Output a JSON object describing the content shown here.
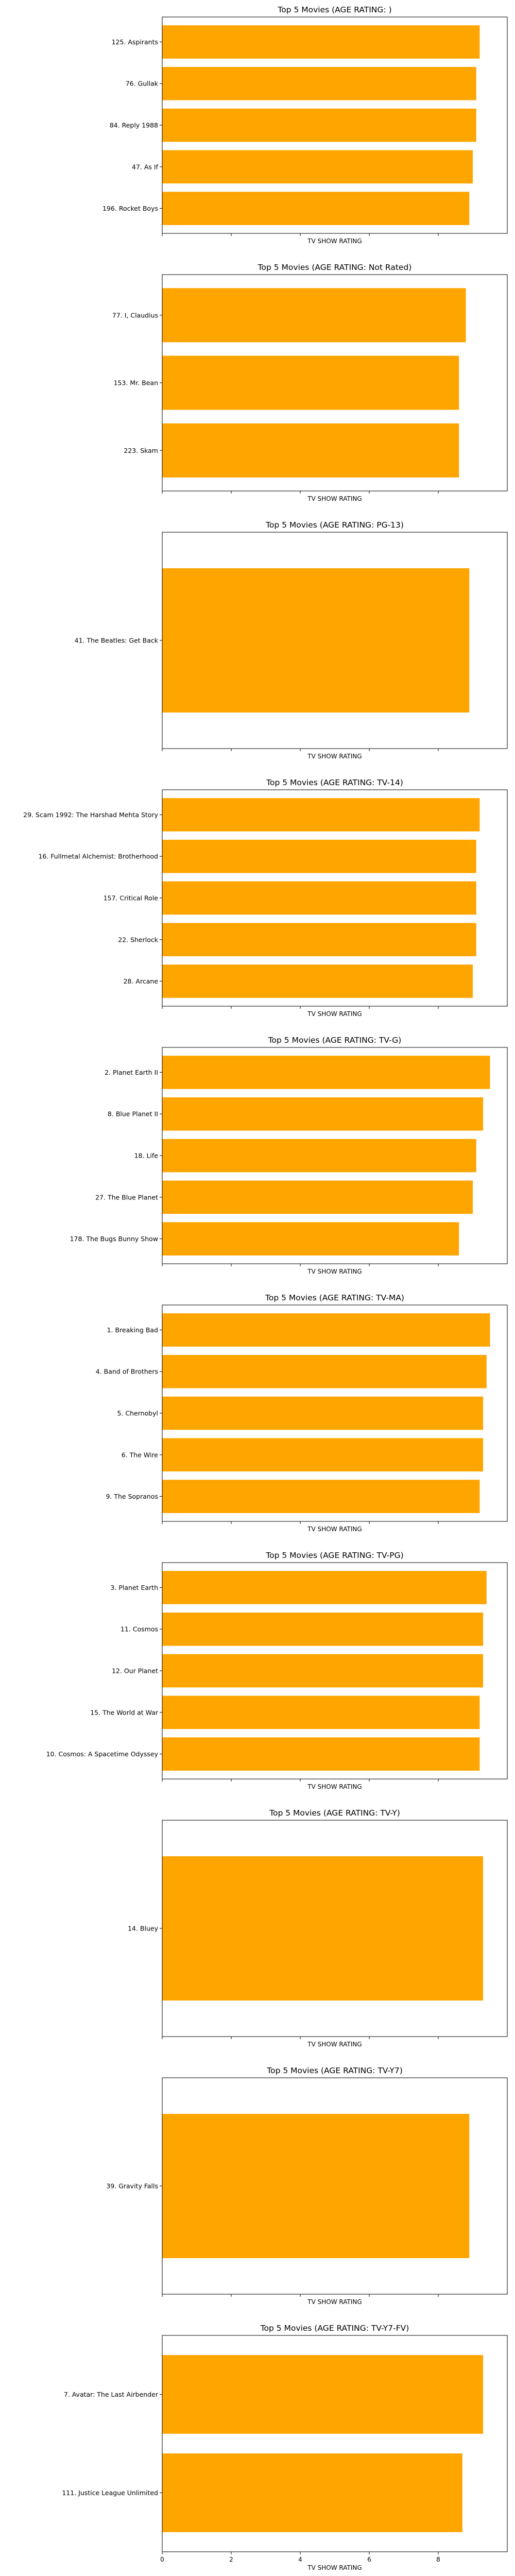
{
  "chart_data": [
    {
      "type": "bar",
      "orientation": "horizontal",
      "title": "Top 5 Movies (AGE RATING: )",
      "xlabel": "TV SHOW RATING",
      "categories": [
        "125. Aspirants",
        "76. Gullak",
        "84. Reply 1988",
        "47. As If",
        "196. Rocket Boys"
      ],
      "values": [
        9.2,
        9.1,
        9.1,
        9.0,
        8.9
      ],
      "color": "#ffa500"
    },
    {
      "type": "bar",
      "orientation": "horizontal",
      "title": "Top 5 Movies (AGE RATING: Not Rated)",
      "xlabel": "TV SHOW RATING",
      "categories": [
        "77. I, Claudius",
        "153. Mr. Bean",
        "223. Skam"
      ],
      "values": [
        8.8,
        8.6,
        8.6
      ],
      "color": "#ffa500"
    },
    {
      "type": "bar",
      "orientation": "horizontal",
      "title": "Top 5 Movies (AGE RATING: PG-13)",
      "xlabel": "TV SHOW RATING",
      "categories": [
        "41. The Beatles: Get Back"
      ],
      "values": [
        8.9
      ],
      "color": "#ffa500"
    },
    {
      "type": "bar",
      "orientation": "horizontal",
      "title": "Top 5 Movies (AGE RATING: TV-14)",
      "xlabel": "TV SHOW RATING",
      "categories": [
        "29. Scam 1992: The Harshad Mehta Story",
        "16. Fullmetal Alchemist: Brotherhood",
        "157. Critical Role",
        "22. Sherlock",
        "28. Arcane"
      ],
      "values": [
        9.2,
        9.1,
        9.1,
        9.1,
        9.0
      ],
      "color": "#ffa500"
    },
    {
      "type": "bar",
      "orientation": "horizontal",
      "title": "Top 5 Movies (AGE RATING: TV-G)",
      "xlabel": "TV SHOW RATING",
      "categories": [
        "2. Planet Earth II",
        "8. Blue Planet II",
        "18. Life",
        "27. The Blue Planet",
        "178. The Bugs Bunny Show"
      ],
      "values": [
        9.5,
        9.3,
        9.1,
        9.0,
        8.6
      ],
      "color": "#ffa500"
    },
    {
      "type": "bar",
      "orientation": "horizontal",
      "title": "Top 5 Movies (AGE RATING: TV-MA)",
      "xlabel": "TV SHOW RATING",
      "categories": [
        "1. Breaking Bad",
        "4. Band of Brothers",
        "5. Chernobyl",
        "6. The Wire",
        "9. The Sopranos"
      ],
      "values": [
        9.5,
        9.4,
        9.3,
        9.3,
        9.2
      ],
      "color": "#ffa500"
    },
    {
      "type": "bar",
      "orientation": "horizontal",
      "title": "Top 5 Movies (AGE RATING: TV-PG)",
      "xlabel": "TV SHOW RATING",
      "categories": [
        "3. Planet Earth",
        "11. Cosmos",
        "12. Our Planet",
        "15. The World at War",
        "10. Cosmos: A Spacetime Odyssey"
      ],
      "values": [
        9.4,
        9.3,
        9.3,
        9.2,
        9.2
      ],
      "color": "#ffa500"
    },
    {
      "type": "bar",
      "orientation": "horizontal",
      "title": "Top 5 Movies (AGE RATING: TV-Y)",
      "xlabel": "TV SHOW RATING",
      "categories": [
        "14. Bluey"
      ],
      "values": [
        9.3
      ],
      "color": "#ffa500"
    },
    {
      "type": "bar",
      "orientation": "horizontal",
      "title": "Top 5 Movies (AGE RATING: TV-Y7)",
      "xlabel": "TV SHOW RATING",
      "categories": [
        "39. Gravity Falls"
      ],
      "values": [
        8.9
      ],
      "color": "#ffa500"
    },
    {
      "type": "bar",
      "orientation": "horizontal",
      "title": "Top 5 Movies (AGE RATING: TV-Y7-FV)",
      "xlabel": "TV SHOW RATING",
      "categories": [
        "7. Avatar: The Last Airbender",
        "111. Justice League Unlimited"
      ],
      "values": [
        9.3,
        8.7
      ],
      "color": "#ffa500"
    }
  ],
  "x_axis": {
    "xlim": [
      0,
      10
    ],
    "ticks": [
      0,
      2,
      4,
      6,
      8
    ],
    "tick_labels_on": "last"
  }
}
